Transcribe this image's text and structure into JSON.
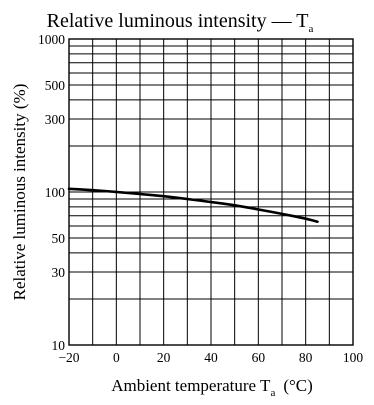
{
  "chart_data": {
    "type": "line",
    "title": "Relative luminous intensity — T",
    "title_subscript": "a",
    "xlabel": "Ambient temperature  T",
    "xlabel_subscript": "a",
    "xlabel_unit": "(°C)",
    "ylabel": "Relative luminous intensity  (%)",
    "xlim": [
      -20,
      100
    ],
    "ylim": [
      10,
      1000
    ],
    "yscale": "log",
    "grid": true,
    "x_ticks": [
      -20,
      0,
      20,
      40,
      60,
      80,
      100
    ],
    "x_tick_labels": [
      "−20",
      "0",
      "20",
      "40",
      "60",
      "80",
      "100"
    ],
    "y_ticks": [
      10,
      30,
      50,
      100,
      300,
      500,
      1000
    ],
    "y_tick_labels": [
      "10",
      "30",
      "50",
      "100",
      "300",
      "500",
      "1000"
    ],
    "series": [
      {
        "x": [
          -20,
          -10,
          0,
          10,
          20,
          30,
          40,
          50,
          60,
          70,
          80,
          85
        ],
        "y": [
          105,
          103,
          100,
          97,
          94,
          90,
          86,
          82,
          77,
          72,
          67,
          64
        ]
      }
    ]
  }
}
